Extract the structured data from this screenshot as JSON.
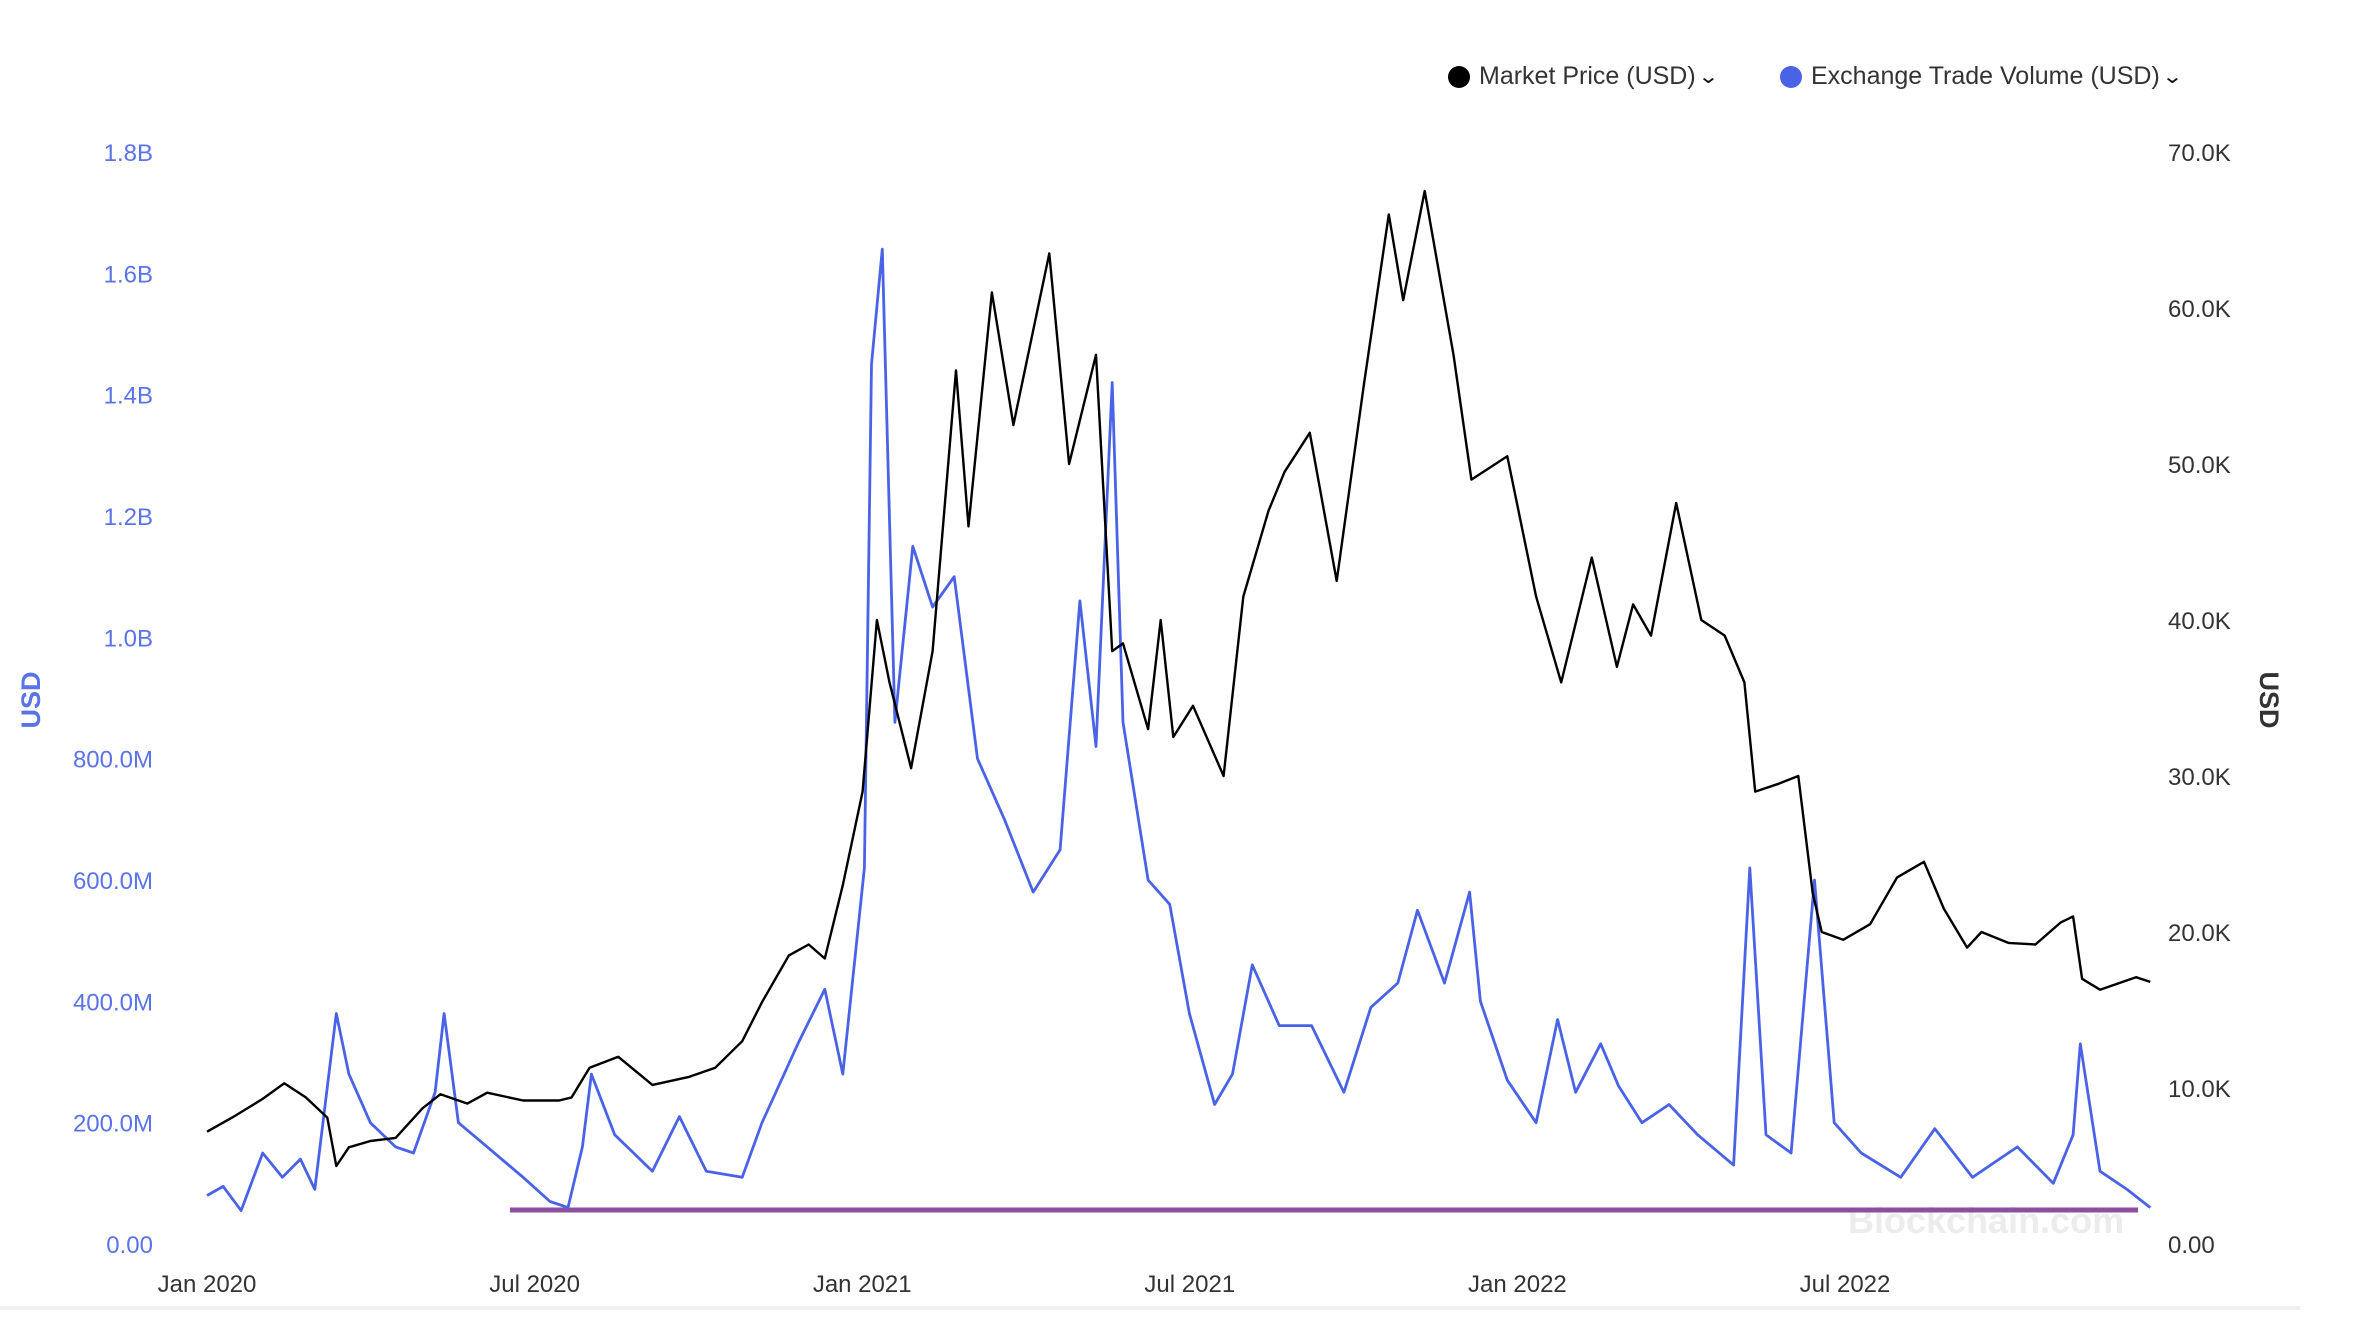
{
  "legend": {
    "price_label": "Market Price (USD)",
    "volume_label": "Exchange Trade Volume (USD)"
  },
  "watermark": "Blockchain.com",
  "colors": {
    "price": "#000000",
    "volume": "#4a63e6",
    "left_axis_text": "#5b73e8",
    "right_axis_text": "#333333",
    "baseline": "#8a4f9e"
  },
  "chart_data": {
    "type": "line",
    "x_ticks": [
      "Jan 2020",
      "Jul 2020",
      "Jan 2021",
      "Jul 2021",
      "Jan 2022",
      "Jul 2022"
    ],
    "y_left": {
      "label": "USD",
      "ticks": [
        "0.00",
        "200.0M",
        "400.0M",
        "600.0M",
        "800.0M",
        "1.0B",
        "1.2B",
        "1.4B",
        "1.6B",
        "1.8B"
      ],
      "range": [
        0,
        1800000000
      ]
    },
    "y_right": {
      "label": "USD",
      "ticks": [
        "0.00",
        "10.0K",
        "20.0K",
        "30.0K",
        "40.0K",
        "50.0K",
        "60.0K",
        "70.0K"
      ],
      "range": [
        0,
        70000
      ]
    },
    "series": [
      {
        "name": "Market Price (USD)",
        "axis": "right",
        "points": [
          [
            "2020-01-01",
            7200
          ],
          [
            "2020-01-15",
            8100
          ],
          [
            "2020-02-01",
            9300
          ],
          [
            "2020-02-13",
            10300
          ],
          [
            "2020-02-25",
            9400
          ],
          [
            "2020-03-08",
            8100
          ],
          [
            "2020-03-13",
            5000
          ],
          [
            "2020-03-20",
            6200
          ],
          [
            "2020-04-01",
            6600
          ],
          [
            "2020-04-15",
            6800
          ],
          [
            "2020-04-30",
            8700
          ],
          [
            "2020-05-10",
            9600
          ],
          [
            "2020-05-25",
            9000
          ],
          [
            "2020-06-05",
            9700
          ],
          [
            "2020-06-25",
            9200
          ],
          [
            "2020-07-15",
            9200
          ],
          [
            "2020-07-22",
            9400
          ],
          [
            "2020-08-01",
            11300
          ],
          [
            "2020-08-17",
            12000
          ],
          [
            "2020-09-05",
            10200
          ],
          [
            "2020-09-25",
            10700
          ],
          [
            "2020-10-10",
            11300
          ],
          [
            "2020-10-25",
            13000
          ],
          [
            "2020-11-05",
            15500
          ],
          [
            "2020-11-20",
            18500
          ],
          [
            "2020-12-01",
            19200
          ],
          [
            "2020-12-10",
            18300
          ],
          [
            "2020-12-20",
            23000
          ],
          [
            "2020-12-31",
            29000
          ],
          [
            "2021-01-08",
            40000
          ],
          [
            "2021-01-15",
            36000
          ],
          [
            "2021-01-27",
            30500
          ],
          [
            "2021-02-08",
            38000
          ],
          [
            "2021-02-21",
            56000
          ],
          [
            "2021-02-28",
            46000
          ],
          [
            "2021-03-13",
            61000
          ],
          [
            "2021-03-25",
            52500
          ],
          [
            "2021-04-14",
            63500
          ],
          [
            "2021-04-25",
            50000
          ],
          [
            "2021-05-10",
            57000
          ],
          [
            "2021-05-19",
            38000
          ],
          [
            "2021-05-25",
            38500
          ],
          [
            "2021-06-08",
            33000
          ],
          [
            "2021-06-15",
            40000
          ],
          [
            "2021-06-22",
            32500
          ],
          [
            "2021-07-03",
            34500
          ],
          [
            "2021-07-20",
            30000
          ],
          [
            "2021-07-31",
            41500
          ],
          [
            "2021-08-14",
            47000
          ],
          [
            "2021-08-23",
            49500
          ],
          [
            "2021-09-06",
            52000
          ],
          [
            "2021-09-21",
            42500
          ],
          [
            "2021-10-06",
            55000
          ],
          [
            "2021-10-20",
            66000
          ],
          [
            "2021-10-28",
            60500
          ],
          [
            "2021-11-09",
            67500
          ],
          [
            "2021-11-25",
            57000
          ],
          [
            "2021-12-05",
            49000
          ],
          [
            "2021-12-25",
            50500
          ],
          [
            "2022-01-10",
            41500
          ],
          [
            "2022-01-24",
            36000
          ],
          [
            "2022-02-10",
            44000
          ],
          [
            "2022-02-24",
            37000
          ],
          [
            "2022-03-05",
            41000
          ],
          [
            "2022-03-15",
            39000
          ],
          [
            "2022-03-29",
            47500
          ],
          [
            "2022-04-12",
            40000
          ],
          [
            "2022-04-25",
            39000
          ],
          [
            "2022-05-06",
            36000
          ],
          [
            "2022-05-12",
            29000
          ],
          [
            "2022-05-25",
            29500
          ],
          [
            "2022-06-05",
            30000
          ],
          [
            "2022-06-13",
            22500
          ],
          [
            "2022-06-18",
            20000
          ],
          [
            "2022-06-30",
            19500
          ],
          [
            "2022-07-15",
            20500
          ],
          [
            "2022-07-30",
            23500
          ],
          [
            "2022-08-14",
            24500
          ],
          [
            "2022-08-25",
            21500
          ],
          [
            "2022-09-07",
            19000
          ],
          [
            "2022-09-15",
            20000
          ],
          [
            "2022-09-30",
            19300
          ],
          [
            "2022-10-15",
            19200
          ],
          [
            "2022-10-29",
            20600
          ],
          [
            "2022-11-05",
            21000
          ],
          [
            "2022-11-10",
            17000
          ],
          [
            "2022-11-20",
            16300
          ],
          [
            "2022-12-10",
            17100
          ],
          [
            "2022-12-18",
            16800
          ]
        ]
      },
      {
        "name": "Exchange Trade Volume (USD)",
        "axis": "left",
        "points": [
          [
            "2020-01-01",
            80000000
          ],
          [
            "2020-01-10",
            95000000
          ],
          [
            "2020-01-20",
            55000000
          ],
          [
            "2020-02-01",
            150000000
          ],
          [
            "2020-02-12",
            110000000
          ],
          [
            "2020-02-22",
            140000000
          ],
          [
            "2020-03-01",
            90000000
          ],
          [
            "2020-03-13",
            380000000
          ],
          [
            "2020-03-20",
            280000000
          ],
          [
            "2020-04-01",
            200000000
          ],
          [
            "2020-04-15",
            160000000
          ],
          [
            "2020-04-25",
            150000000
          ],
          [
            "2020-05-07",
            250000000
          ],
          [
            "2020-05-12",
            380000000
          ],
          [
            "2020-05-20",
            200000000
          ],
          [
            "2020-06-05",
            160000000
          ],
          [
            "2020-06-25",
            110000000
          ],
          [
            "2020-07-10",
            70000000
          ],
          [
            "2020-07-20",
            60000000
          ],
          [
            "2020-07-28",
            160000000
          ],
          [
            "2020-08-02",
            280000000
          ],
          [
            "2020-08-15",
            180000000
          ],
          [
            "2020-09-05",
            120000000
          ],
          [
            "2020-09-20",
            210000000
          ],
          [
            "2020-10-05",
            120000000
          ],
          [
            "2020-10-25",
            110000000
          ],
          [
            "2020-11-05",
            200000000
          ],
          [
            "2020-11-25",
            330000000
          ],
          [
            "2020-12-10",
            420000000
          ],
          [
            "2020-12-20",
            280000000
          ],
          [
            "2021-01-01",
            620000000
          ],
          [
            "2021-01-05",
            1450000000
          ],
          [
            "2021-01-11",
            1640000000
          ],
          [
            "2021-01-18",
            860000000
          ],
          [
            "2021-01-28",
            1150000000
          ],
          [
            "2021-02-08",
            1050000000
          ],
          [
            "2021-02-20",
            1100000000
          ],
          [
            "2021-03-05",
            800000000
          ],
          [
            "2021-03-20",
            700000000
          ],
          [
            "2021-04-05",
            580000000
          ],
          [
            "2021-04-20",
            650000000
          ],
          [
            "2021-05-01",
            1060000000
          ],
          [
            "2021-05-10",
            820000000
          ],
          [
            "2021-05-19",
            1420000000
          ],
          [
            "2021-05-25",
            860000000
          ],
          [
            "2021-06-08",
            600000000
          ],
          [
            "2021-06-20",
            560000000
          ],
          [
            "2021-07-01",
            380000000
          ],
          [
            "2021-07-15",
            230000000
          ],
          [
            "2021-07-25",
            280000000
          ],
          [
            "2021-08-05",
            460000000
          ],
          [
            "2021-08-20",
            360000000
          ],
          [
            "2021-09-07",
            360000000
          ],
          [
            "2021-09-25",
            250000000
          ],
          [
            "2021-10-10",
            390000000
          ],
          [
            "2021-10-25",
            430000000
          ],
          [
            "2021-11-05",
            550000000
          ],
          [
            "2021-11-20",
            430000000
          ],
          [
            "2021-12-04",
            580000000
          ],
          [
            "2021-12-10",
            400000000
          ],
          [
            "2021-12-25",
            270000000
          ],
          [
            "2022-01-10",
            200000000
          ],
          [
            "2022-01-22",
            370000000
          ],
          [
            "2022-02-01",
            250000000
          ],
          [
            "2022-02-15",
            330000000
          ],
          [
            "2022-02-25",
            260000000
          ],
          [
            "2022-03-10",
            200000000
          ],
          [
            "2022-03-25",
            230000000
          ],
          [
            "2022-04-10",
            180000000
          ],
          [
            "2022-04-30",
            130000000
          ],
          [
            "2022-05-09",
            620000000
          ],
          [
            "2022-05-18",
            180000000
          ],
          [
            "2022-06-01",
            150000000
          ],
          [
            "2022-06-14",
            600000000
          ],
          [
            "2022-06-25",
            200000000
          ],
          [
            "2022-07-10",
            150000000
          ],
          [
            "2022-08-01",
            110000000
          ],
          [
            "2022-08-20",
            190000000
          ],
          [
            "2022-09-10",
            110000000
          ],
          [
            "2022-10-05",
            160000000
          ],
          [
            "2022-10-25",
            100000000
          ],
          [
            "2022-11-05",
            180000000
          ],
          [
            "2022-11-09",
            330000000
          ],
          [
            "2022-11-20",
            120000000
          ],
          [
            "2022-12-05",
            90000000
          ],
          [
            "2022-12-18",
            60000000
          ]
        ]
      }
    ],
    "grid": false,
    "legend_position": "top-right"
  }
}
